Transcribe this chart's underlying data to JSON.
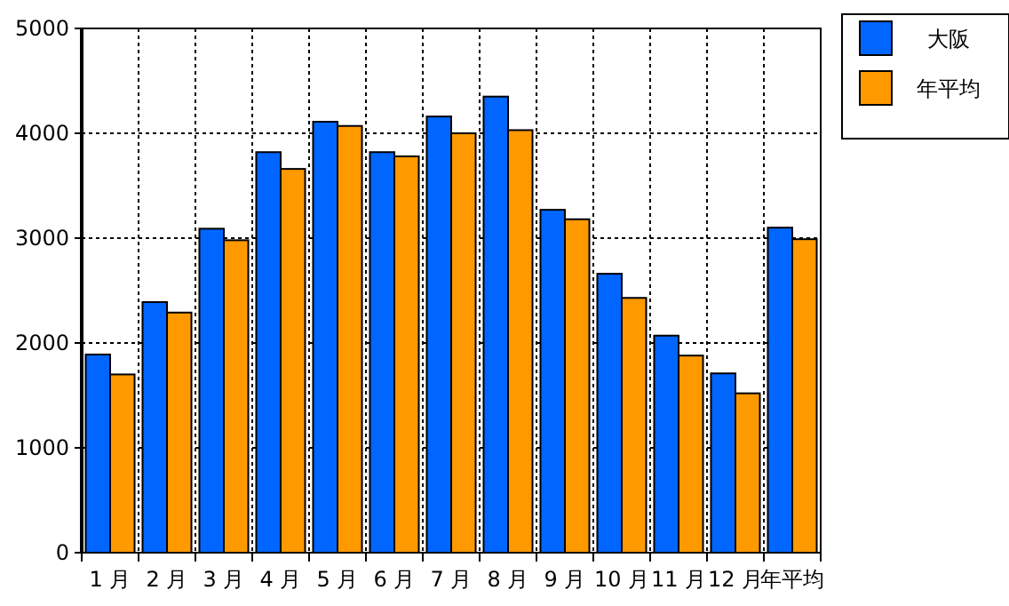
{
  "chart_data": {
    "type": "bar",
    "categories": [
      "1 月",
      "2 月",
      "3 月",
      "4 月",
      "5 月",
      "6 月",
      "7 月",
      "8 月",
      "9 月",
      "10 月",
      "11 月",
      "12 月",
      "年平均"
    ],
    "series": [
      {
        "name": "大阪",
        "color": "#0066ff",
        "values": [
          1890,
          2390,
          3090,
          3820,
          4110,
          3820,
          4160,
          4350,
          3270,
          2660,
          2070,
          1710,
          3100
        ]
      },
      {
        "name": "年平均",
        "color": "#ff9900",
        "values": [
          1700,
          2290,
          2980,
          3660,
          4070,
          3780,
          4000,
          4030,
          3180,
          2430,
          1880,
          1520,
          2990
        ]
      }
    ],
    "ylim": [
      0,
      5000
    ],
    "yticks": [
      0,
      1000,
      2000,
      3000,
      4000,
      5000
    ],
    "grid": true,
    "legend": "top right"
  }
}
